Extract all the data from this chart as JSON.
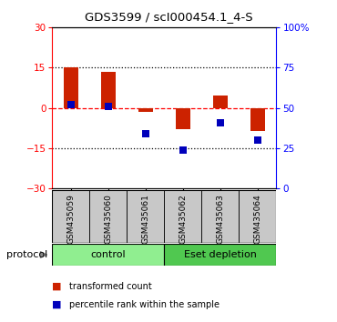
{
  "title": "GDS3599 / scI000454.1_4-S",
  "samples": [
    "GSM435059",
    "GSM435060",
    "GSM435061",
    "GSM435062",
    "GSM435063",
    "GSM435064"
  ],
  "red_values": [
    15.0,
    13.5,
    -1.5,
    -8.0,
    4.5,
    -8.5
  ],
  "blue_values_pct": [
    52,
    51,
    34,
    24,
    41,
    30
  ],
  "ylim_left": [
    -30,
    30
  ],
  "ylim_right": [
    0,
    100
  ],
  "yticks_left": [
    -30,
    -15,
    0,
    15,
    30
  ],
  "yticks_right": [
    0,
    25,
    50,
    75,
    100
  ],
  "ytick_labels_right": [
    "0",
    "25",
    "50",
    "75",
    "100%"
  ],
  "hlines": [
    15,
    -15
  ],
  "groups": [
    {
      "label": "control",
      "start": 0,
      "end": 3,
      "color": "#90EE90"
    },
    {
      "label": "Eset depletion",
      "start": 3,
      "end": 6,
      "color": "#50C850"
    }
  ],
  "protocol_label": "protocol",
  "bar_color": "#CC2200",
  "dot_color": "#0000BB",
  "bar_width": 0.38,
  "dot_size": 40,
  "background_color": "#ffffff",
  "legend_red": "transformed count",
  "legend_blue": "percentile rank within the sample",
  "gray_box_color": "#c8c8c8",
  "title_fontsize": 9.5,
  "tick_fontsize": 7.5,
  "sample_fontsize": 6.5,
  "group_fontsize": 8,
  "legend_fontsize": 7,
  "protocol_fontsize": 8
}
